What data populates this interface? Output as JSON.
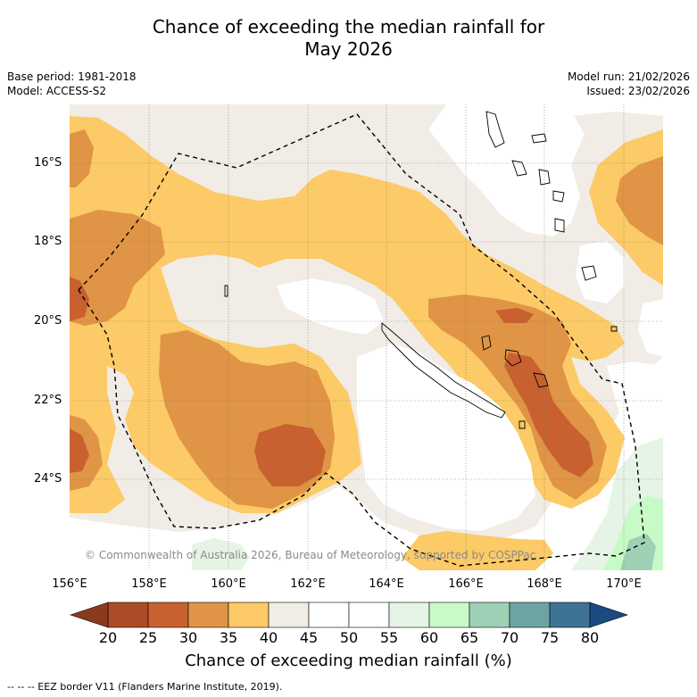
{
  "title": {
    "line1": "Chance of exceeding the median rainfall for",
    "line2": "May 2026"
  },
  "meta": {
    "base_period": "Base period: 1981-2018",
    "model": "Model: ACCESS-S2",
    "model_run": "Model run: 21/02/2026",
    "issued": "Issued: 23/02/2026"
  },
  "map": {
    "lat_labels": [
      "16°S",
      "18°S",
      "20°S",
      "22°S",
      "24°S"
    ],
    "lon_labels": [
      "156°E",
      "158°E",
      "160°E",
      "162°E",
      "164°E",
      "166°E",
      "168°E",
      "170°E"
    ],
    "copyright": "© Commonwealth of Australia 2026, Bureau of Meteorology, supported by COSPPac"
  },
  "colorbar": {
    "ticks": [
      "20",
      "25",
      "30",
      "35",
      "40",
      "45",
      "50",
      "55",
      "60",
      "65",
      "70",
      "75",
      "80"
    ],
    "colors": [
      "#ac4c26",
      "#c8612f",
      "#e09445",
      "#fcca66",
      "#f1ece6",
      "#ffffff",
      "#ffffff",
      "#e6f4e6",
      "#c8fac8",
      "#9dd0b5",
      "#6ea3a4",
      "#3e7393"
    ],
    "under_color": "#8a3a1e",
    "over_color": "#1a4a80",
    "label": "Chance of exceeding median rainfall (%)"
  },
  "legend": {
    "footnote": "-- -- -- EEZ border V11 (Flanders Marine Institute, 2019)."
  },
  "palette": {
    "p20": "#ac4c26",
    "p25": "#c8612f",
    "p30": "#e09445",
    "p35": "#fcca66",
    "p40": "#f1ece6",
    "p55": "#e6f4e6",
    "p60": "#c8fac8",
    "p65": "#9dd0b5"
  }
}
